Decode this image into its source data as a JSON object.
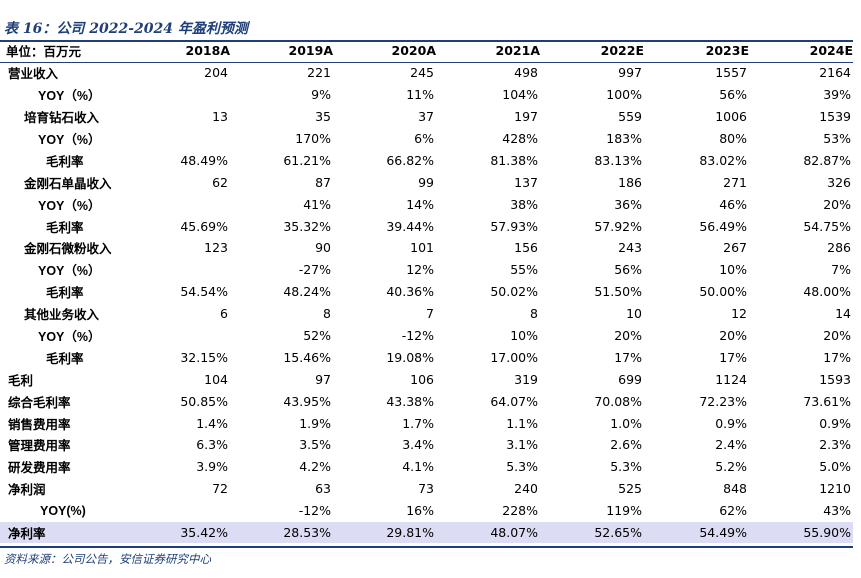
{
  "title": "表 16：公司 2022-2024 年盈利预测",
  "header": {
    "unit_label": "单位：百万元",
    "years": [
      "2018A",
      "2019A",
      "2020A",
      "2021A",
      "2022E",
      "2023E",
      "2024E"
    ]
  },
  "rows": [
    {
      "label": "营业收入",
      "indent": 0,
      "values": [
        "204",
        "221",
        "245",
        "498",
        "997",
        "1557",
        "2164"
      ]
    },
    {
      "label": "YOY（%）",
      "indent": 2,
      "values": [
        "",
        "9%",
        "11%",
        "104%",
        "100%",
        "56%",
        "39%"
      ]
    },
    {
      "label": "培育钻石收入",
      "indent": 1,
      "values": [
        "13",
        "35",
        "37",
        "197",
        "559",
        "1006",
        "1539"
      ]
    },
    {
      "label": "YOY（%）",
      "indent": 2,
      "values": [
        "",
        "170%",
        "6%",
        "428%",
        "183%",
        "80%",
        "53%"
      ]
    },
    {
      "label": "毛利率",
      "indent": 3,
      "values": [
        "48.49%",
        "61.21%",
        "66.82%",
        "81.38%",
        "83.13%",
        "83.02%",
        "82.87%"
      ]
    },
    {
      "label": "金刚石单晶收入",
      "indent": 1,
      "values": [
        "62",
        "87",
        "99",
        "137",
        "186",
        "271",
        "326"
      ]
    },
    {
      "label": "YOY（%）",
      "indent": 2,
      "values": [
        "",
        "41%",
        "14%",
        "38%",
        "36%",
        "46%",
        "20%"
      ]
    },
    {
      "label": "毛利率",
      "indent": 3,
      "values": [
        "45.69%",
        "35.32%",
        "39.44%",
        "57.93%",
        "57.92%",
        "56.49%",
        "54.75%"
      ]
    },
    {
      "label": "金刚石微粉收入",
      "indent": 1,
      "values": [
        "123",
        "90",
        "101",
        "156",
        "243",
        "267",
        "286"
      ]
    },
    {
      "label": "YOY（%）",
      "indent": 2,
      "values": [
        "",
        "-27%",
        "12%",
        "55%",
        "56%",
        "10%",
        "7%"
      ]
    },
    {
      "label": "毛利率",
      "indent": 3,
      "values": [
        "54.54%",
        "48.24%",
        "40.36%",
        "50.02%",
        "51.50%",
        "50.00%",
        "48.00%"
      ]
    },
    {
      "label": "其他业务收入",
      "indent": 1,
      "values": [
        "6",
        "8",
        "7",
        "8",
        "10",
        "12",
        "14"
      ]
    },
    {
      "label": "YOY（%）",
      "indent": 2,
      "values": [
        "",
        "52%",
        "-12%",
        "10%",
        "20%",
        "20%",
        "20%"
      ]
    },
    {
      "label": "毛利率",
      "indent": 3,
      "values": [
        "32.15%",
        "15.46%",
        "19.08%",
        "17.00%",
        "17%",
        "17%",
        "17%"
      ]
    },
    {
      "label": "毛利",
      "indent": 0,
      "values": [
        "104",
        "97",
        "106",
        "319",
        "699",
        "1124",
        "1593"
      ]
    },
    {
      "label": "综合毛利率",
      "indent": 0,
      "values": [
        "50.85%",
        "43.95%",
        "43.38%",
        "64.07%",
        "70.08%",
        "72.23%",
        "73.61%"
      ]
    },
    {
      "label": "销售费用率",
      "indent": 0,
      "values": [
        "1.4%",
        "1.9%",
        "1.7%",
        "1.1%",
        "1.0%",
        "0.9%",
        "0.9%"
      ]
    },
    {
      "label": "管理费用率",
      "indent": 0,
      "values": [
        "6.3%",
        "3.5%",
        "3.4%",
        "3.1%",
        "2.6%",
        "2.4%",
        "2.3%"
      ]
    },
    {
      "label": "研发费用率",
      "indent": 0,
      "values": [
        "3.9%",
        "4.2%",
        "4.1%",
        "5.3%",
        "5.3%",
        "5.2%",
        "5.0%"
      ]
    },
    {
      "label": "净利润",
      "indent": 0,
      "values": [
        "72",
        "63",
        "73",
        "240",
        "525",
        "848",
        "1210"
      ]
    },
    {
      "label": "YOY(%)",
      "indent": 4,
      "values": [
        "",
        "-12%",
        "16%",
        "228%",
        "119%",
        "62%",
        "43%"
      ]
    },
    {
      "label": "净利率",
      "indent": 0,
      "highlight": true,
      "values": [
        "35.42%",
        "28.53%",
        "29.81%",
        "48.07%",
        "52.65%",
        "54.49%",
        "55.90%"
      ]
    }
  ],
  "source": "资料来源：公司公告，安信证券研究中心",
  "colors": {
    "accent": "#1f3f7a",
    "highlight_row": "#dcdcf4"
  }
}
